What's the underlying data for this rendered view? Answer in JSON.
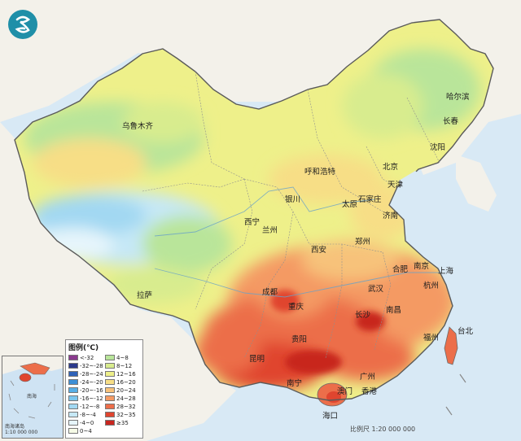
{
  "legend": {
    "title": "图例(℃)",
    "items": [
      {
        "label": "<-32",
        "color": "#8a3a8f"
      },
      {
        "label": "4~8",
        "color": "#b9e59a"
      },
      {
        "label": "-32~-28",
        "color": "#2b3a8c"
      },
      {
        "label": "8~12",
        "color": "#d8ec8e"
      },
      {
        "label": "-28~-24",
        "color": "#2f62b8"
      },
      {
        "label": "12~16",
        "color": "#eef08a"
      },
      {
        "label": "-24~-20",
        "color": "#3d8fd6"
      },
      {
        "label": "16~20",
        "color": "#f7de86"
      },
      {
        "label": "-20~-16",
        "color": "#57aee6"
      },
      {
        "label": "20~24",
        "color": "#f7c27a"
      },
      {
        "label": "-16~-12",
        "color": "#7cc6ee"
      },
      {
        "label": "24~28",
        "color": "#f49a64"
      },
      {
        "label": "-12~-8",
        "color": "#a2d8f2"
      },
      {
        "label": "28~32",
        "color": "#ec6e4a"
      },
      {
        "label": "-8~-4",
        "color": "#c6e8f6"
      },
      {
        "label": "32~35",
        "color": "#e0452f"
      },
      {
        "label": "-4~0",
        "color": "#e6f5fb"
      },
      {
        "label": "≥35",
        "color": "#c8261f"
      },
      {
        "label": "0~4",
        "color": "#f6fbe6"
      }
    ]
  },
  "cities": [
    {
      "id": "urumqi",
      "label": "乌鲁木齐"
    },
    {
      "id": "harbin",
      "label": "哈尔滨"
    },
    {
      "id": "changchun",
      "label": "长春"
    },
    {
      "id": "shenyang",
      "label": "沈阳"
    },
    {
      "id": "hohhot",
      "label": "呼和浩特"
    },
    {
      "id": "beijing",
      "label": "北京"
    },
    {
      "id": "tianjin",
      "label": "天津"
    },
    {
      "id": "yinchuan",
      "label": "银川"
    },
    {
      "id": "taiyuan",
      "label": "太原"
    },
    {
      "id": "shijiazhuang",
      "label": "石家庄"
    },
    {
      "id": "jinan",
      "label": "济南"
    },
    {
      "id": "xining",
      "label": "西宁"
    },
    {
      "id": "lanzhou",
      "label": "兰州"
    },
    {
      "id": "zhengzhou",
      "label": "郑州"
    },
    {
      "id": "xian",
      "label": "西安"
    },
    {
      "id": "hefei",
      "label": "合肥"
    },
    {
      "id": "nanjing",
      "label": "南京"
    },
    {
      "id": "shanghai",
      "label": "上海"
    },
    {
      "id": "chengdu",
      "label": "成都"
    },
    {
      "id": "wuhan",
      "label": "武汉"
    },
    {
      "id": "hangzhou",
      "label": "杭州"
    },
    {
      "id": "lhasa",
      "label": "拉萨"
    },
    {
      "id": "chongqing",
      "label": "重庆"
    },
    {
      "id": "changsha",
      "label": "长沙"
    },
    {
      "id": "nanchang",
      "label": "南昌"
    },
    {
      "id": "taipei",
      "label": "台北"
    },
    {
      "id": "fuzhou",
      "label": "福州"
    },
    {
      "id": "guiyang",
      "label": "贵阳"
    },
    {
      "id": "kunming",
      "label": "昆明"
    },
    {
      "id": "guangzhou",
      "label": "广州"
    },
    {
      "id": "nanning",
      "label": "南宁"
    },
    {
      "id": "macau",
      "label": "澳门"
    },
    {
      "id": "hongkong",
      "label": "香港"
    },
    {
      "id": "haikou",
      "label": "海口"
    }
  ],
  "inset": {
    "note_line1": "南海诸岛",
    "note_line2": "1:10 000 000",
    "label_nanhai": "南海"
  },
  "scale_text": "比例尺 1:20 000 000",
  "colors": {
    "sea": "#cfe3f3",
    "border": "#6b6b6b"
  }
}
